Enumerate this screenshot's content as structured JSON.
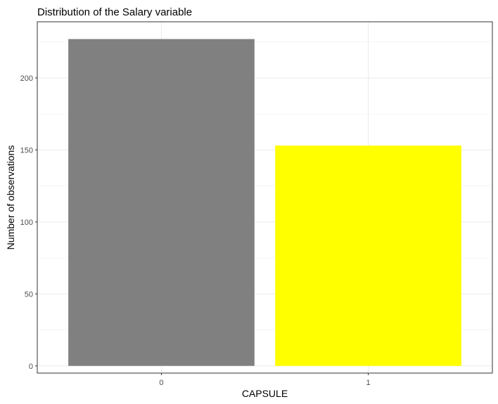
{
  "chart_data": {
    "type": "bar",
    "title": "Distribution of the Salary variable",
    "xlabel": "CAPSULE",
    "ylabel": "Number of observations",
    "categories": [
      "0",
      "1"
    ],
    "values": [
      227,
      153
    ],
    "colors": [
      "#808080",
      "#ffff00"
    ],
    "ylim": [
      -5,
      239
    ],
    "yticks": [
      0,
      50,
      100,
      150,
      200
    ],
    "grid": true,
    "legend": "none"
  }
}
